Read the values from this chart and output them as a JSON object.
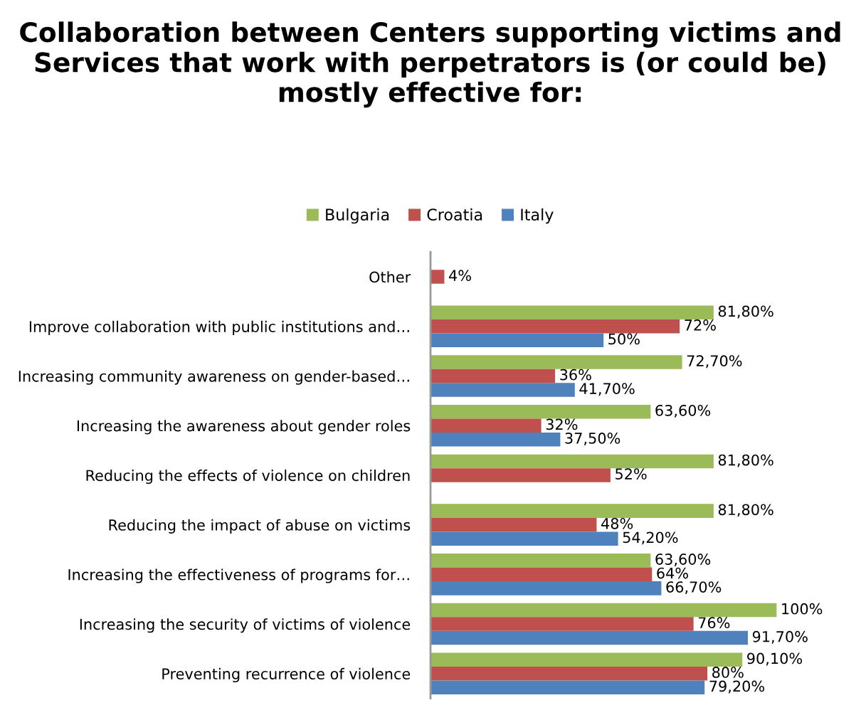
{
  "chart_data": {
    "type": "bar",
    "orientation": "horizontal",
    "title": "Collaboration between Centers supporting victims and Services that work with perpetrators is (or could be) mostly effective for:",
    "categories": [
      "Other",
      "Improve collaboration with public institutions and…",
      "Increasing community awareness on gender-based…",
      "Increasing the awareness about gender roles",
      "Reducing the effects of violence on children",
      "Reducing the impact of abuse on victims",
      "Increasing the effectiveness of programs for…",
      "Increasing the security of victims of violence",
      "Preventing recurrence of violence"
    ],
    "series": [
      {
        "name": "Bulgaria",
        "color": "#9bbb59",
        "values": [
          null,
          81.8,
          72.7,
          63.6,
          81.8,
          81.8,
          63.6,
          100,
          90.1
        ],
        "value_labels": [
          null,
          "81,80%",
          "72,70%",
          "63,60%",
          "81,80%",
          "81,80%",
          "63,60%",
          "100%",
          "90,10%"
        ]
      },
      {
        "name": "Croatia",
        "color": "#c0504d",
        "values": [
          4,
          72,
          36,
          32,
          52,
          48,
          64,
          76,
          80
        ],
        "value_labels": [
          "4%",
          "72%",
          "36%",
          "32%",
          "52%",
          "48%",
          "64%",
          "76%",
          "80%"
        ]
      },
      {
        "name": "Italy",
        "color": "#4f81bd",
        "values": [
          null,
          50,
          41.7,
          37.5,
          null,
          54.2,
          66.7,
          91.7,
          79.2
        ],
        "value_labels": [
          null,
          "50%",
          "41,70%",
          "37,50%",
          null,
          "54,20%",
          "66,70%",
          "91,70%",
          "79,20%"
        ]
      }
    ],
    "legend": "top",
    "grid": false
  }
}
